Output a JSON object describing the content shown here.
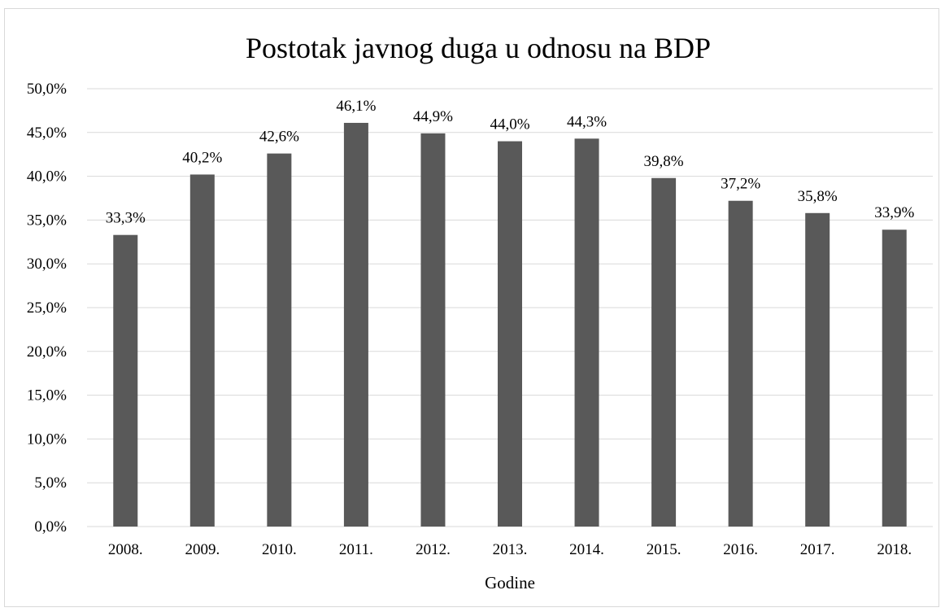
{
  "chart_data": {
    "type": "bar",
    "title": "Postotak javnog duga u odnosu na BDP",
    "xlabel": "Godine",
    "ylabel": "",
    "categories": [
      "2008.",
      "2009.",
      "2010.",
      "2011.",
      "2012.",
      "2013.",
      "2014.",
      "2015.",
      "2016.",
      "2017.",
      "2018."
    ],
    "values": [
      33.3,
      40.2,
      42.6,
      46.1,
      44.9,
      44.0,
      44.3,
      39.8,
      37.2,
      35.8,
      33.9
    ],
    "data_labels": [
      "33,3%",
      "40,2%",
      "42,6%",
      "46,1%",
      "44,9%",
      "44,0%",
      "44,3%",
      "39,8%",
      "37,2%",
      "35,8%",
      "33,9%"
    ],
    "yticks": [
      0,
      5,
      10,
      15,
      20,
      25,
      30,
      35,
      40,
      45,
      50
    ],
    "ytick_labels": [
      "0,0%",
      "5,0%",
      "10,0%",
      "15,0%",
      "20,0%",
      "25,0%",
      "30,0%",
      "35,0%",
      "40,0%",
      "45,0%",
      "50,0%"
    ],
    "ylim": [
      0,
      50
    ],
    "grid": true,
    "legend": "none",
    "bar_color": "#595959",
    "grid_color": "#d9d9d9"
  }
}
